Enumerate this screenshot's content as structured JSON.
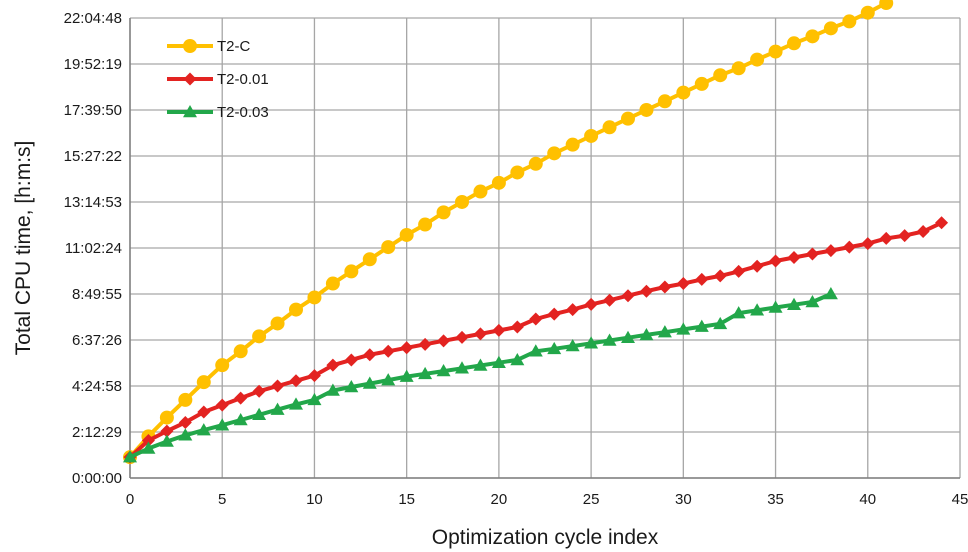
{
  "chart_data": {
    "type": "line",
    "xlabel": "Optimization cycle index",
    "ylabel": "Total CPU time, [h:m:s]",
    "xlim": [
      0,
      45
    ],
    "ylim": [
      0,
      79488
    ],
    "grid": true,
    "legend_position": "top-left",
    "x_ticks": [
      {
        "value": 0,
        "label": "0"
      },
      {
        "value": 5,
        "label": "5"
      },
      {
        "value": 10,
        "label": "10"
      },
      {
        "value": 15,
        "label": "15"
      },
      {
        "value": 20,
        "label": "20"
      },
      {
        "value": 25,
        "label": "25"
      },
      {
        "value": 30,
        "label": "30"
      },
      {
        "value": 35,
        "label": "35"
      },
      {
        "value": 40,
        "label": "40"
      },
      {
        "value": 45,
        "label": "45"
      }
    ],
    "y_ticks": [
      {
        "value": 0,
        "label": "0:00:00"
      },
      {
        "value": 7949,
        "label": "2:12:29"
      },
      {
        "value": 15898,
        "label": "4:24:58"
      },
      {
        "value": 23846,
        "label": "6:37:26"
      },
      {
        "value": 31795,
        "label": "8:49:55"
      },
      {
        "value": 39744,
        "label": "11:02:24"
      },
      {
        "value": 47693,
        "label": "13:14:53"
      },
      {
        "value": 55642,
        "label": "15:27:22"
      },
      {
        "value": 63590,
        "label": "17:39:50"
      },
      {
        "value": 71539,
        "label": "19:52:19"
      },
      {
        "value": 79488,
        "label": "22:04:48"
      }
    ],
    "series": [
      {
        "name": "T2-C",
        "color": "#FFC000",
        "marker": "circle",
        "x": [
          0,
          1,
          2,
          3,
          4,
          5,
          6,
          7,
          8,
          9,
          10,
          11,
          12,
          13,
          14,
          15,
          16,
          17,
          18,
          19,
          20,
          21,
          22,
          23,
          24,
          25,
          26,
          27,
          28,
          29,
          30,
          31,
          32,
          33,
          34,
          35,
          36,
          37,
          38,
          39,
          40,
          41
        ],
        "y": [
          "1:00:00",
          "2:00:00",
          "2:54:00",
          "3:45:00",
          "4:36:00",
          "5:25:00",
          "6:05:00",
          "6:48:00",
          "7:25:00",
          "8:05:00",
          "8:40:00",
          "9:20:00",
          "9:55:00",
          "10:30:00",
          "11:05:00",
          "11:40:00",
          "12:10:00",
          "12:45:00",
          "13:15:00",
          "13:45:00",
          "14:10:00",
          "14:40:00",
          "15:05:00",
          "15:35:00",
          "16:00:00",
          "16:25:00",
          "16:50:00",
          "17:15:00",
          "17:40:00",
          "18:05:00",
          "18:30:00",
          "18:55:00",
          "19:20:00",
          "19:40:00",
          "20:05:00",
          "20:28:00",
          "20:52:00",
          "21:12:00",
          "21:35:00",
          "21:55:00",
          "22:20:00",
          "22:48:00"
        ]
      },
      {
        "name": "T2-0.01",
        "color": "#E32321",
        "marker": "diamond",
        "x": [
          0,
          1,
          2,
          3,
          4,
          5,
          6,
          7,
          8,
          9,
          10,
          11,
          12,
          13,
          14,
          15,
          16,
          17,
          18,
          19,
          20,
          21,
          22,
          23,
          24,
          25,
          26,
          27,
          28,
          29,
          30,
          31,
          32,
          33,
          34,
          35,
          36,
          37,
          38,
          39,
          40,
          41,
          42,
          43,
          44
        ],
        "y": [
          "1:00:00",
          "1:48:00",
          "2:15:00",
          "2:40:00",
          "3:10:00",
          "3:30:00",
          "3:50:00",
          "4:10:00",
          "4:25:00",
          "4:40:00",
          "4:55:00",
          "5:25:00",
          "5:40:00",
          "5:55:00",
          "6:05:00",
          "6:15:00",
          "6:25:00",
          "6:35:00",
          "6:45:00",
          "6:55:00",
          "7:05:00",
          "7:15:00",
          "7:38:00",
          "7:52:00",
          "8:05:00",
          "8:20:00",
          "8:32:00",
          "8:45:00",
          "8:58:00",
          "9:10:00",
          "9:20:00",
          "9:32:00",
          "9:42:00",
          "9:55:00",
          "10:10:00",
          "10:25:00",
          "10:35:00",
          "10:45:00",
          "10:55:00",
          "11:05:00",
          "11:15:00",
          "11:30:00",
          "11:38:00",
          "11:50:00",
          "12:15:00"
        ]
      },
      {
        "name": "T2-0.03",
        "color": "#22A74A",
        "marker": "triangle",
        "x": [
          0,
          1,
          2,
          3,
          4,
          5,
          6,
          7,
          8,
          9,
          10,
          11,
          12,
          13,
          14,
          15,
          16,
          17,
          18,
          19,
          20,
          21,
          22,
          23,
          24,
          25,
          26,
          27,
          28,
          29,
          30,
          31,
          32,
          33,
          34,
          35,
          36,
          37,
          38
        ],
        "y": [
          "1:00:00",
          "1:25:00",
          "1:45:00",
          "2:03:00",
          "2:18:00",
          "2:32:00",
          "2:47:00",
          "3:02:00",
          "3:17:00",
          "3:32:00",
          "3:45:00",
          "4:12:00",
          "4:22:00",
          "4:32:00",
          "4:42:00",
          "4:52:00",
          "5:00:00",
          "5:08:00",
          "5:16:00",
          "5:24:00",
          "5:32:00",
          "5:40:00",
          "6:05:00",
          "6:12:00",
          "6:20:00",
          "6:28:00",
          "6:36:00",
          "6:44:00",
          "6:52:00",
          "7:00:00",
          "7:08:00",
          "7:16:00",
          "7:24:00",
          "7:55:00",
          "8:03:00",
          "8:11:00",
          "8:19:00",
          "8:27:00",
          "8:50:00"
        ]
      }
    ]
  }
}
